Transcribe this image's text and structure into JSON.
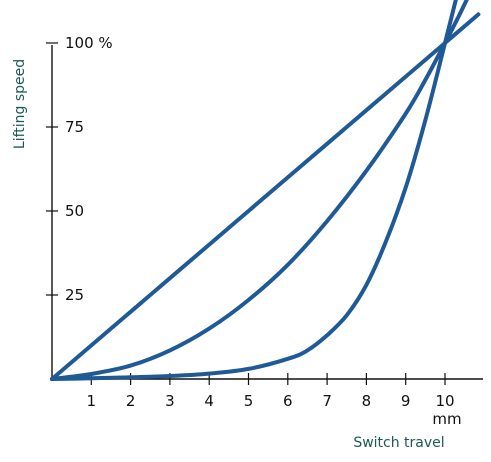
{
  "chart_data": {
    "type": "line",
    "ylabel": "Lifting speed",
    "xlabel": "Switch travel",
    "x_unit": "mm",
    "xlim": [
      0,
      10.8
    ],
    "ylim": [
      0,
      115
    ],
    "x_ticks": [
      "1",
      "2",
      "3",
      "4",
      "5",
      "6",
      "7",
      "8",
      "9",
      "10"
    ],
    "y_ticks": [
      {
        "value": 25,
        "label": "25"
      },
      {
        "value": 50,
        "label": "50"
      },
      {
        "value": 75,
        "label": "75"
      },
      {
        "value": 100,
        "label": "100 %"
      }
    ],
    "grid": false,
    "line_color": "#1f5a96",
    "series": [
      {
        "points": [
          [
            0,
            0
          ],
          [
            1,
            10
          ],
          [
            2,
            20
          ],
          [
            3,
            30
          ],
          [
            4,
            40
          ],
          [
            5,
            50
          ],
          [
            6,
            60
          ],
          [
            7,
            70
          ],
          [
            8,
            80
          ],
          [
            9,
            90
          ],
          [
            10,
            100
          ],
          [
            10.85,
            108.5
          ]
        ]
      },
      {
        "points": [
          [
            0,
            0
          ],
          [
            1,
            1.5
          ],
          [
            2,
            4
          ],
          [
            3,
            8.5
          ],
          [
            4,
            15
          ],
          [
            5,
            23.5
          ],
          [
            6,
            34
          ],
          [
            7,
            47
          ],
          [
            8,
            62
          ],
          [
            9,
            79
          ],
          [
            9.5,
            89
          ],
          [
            10,
            100
          ],
          [
            10.35,
            108
          ],
          [
            10.6,
            114
          ]
        ]
      },
      {
        "points": [
          [
            0,
            0
          ],
          [
            1,
            0.2
          ],
          [
            2,
            0.5
          ],
          [
            3,
            0.9
          ],
          [
            4,
            1.6
          ],
          [
            5,
            3
          ],
          [
            6,
            6
          ],
          [
            6.5,
            8.5
          ],
          [
            7,
            13
          ],
          [
            7.5,
            19
          ],
          [
            8,
            28
          ],
          [
            8.5,
            41
          ],
          [
            9,
            57
          ],
          [
            9.5,
            77
          ],
          [
            10,
            100
          ],
          [
            10.3,
            114
          ]
        ]
      }
    ]
  }
}
